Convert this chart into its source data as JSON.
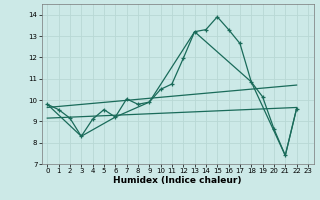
{
  "xlabel": "Humidex (Indice chaleur)",
  "bg_color": "#cce9e7",
  "line_color": "#1a6b5a",
  "grid_color": "#b8d8d5",
  "xlim": [
    -0.5,
    23.5
  ],
  "ylim": [
    7.0,
    14.5
  ],
  "yticks": [
    7,
    8,
    9,
    10,
    11,
    12,
    13,
    14
  ],
  "xticks": [
    0,
    1,
    2,
    3,
    4,
    5,
    6,
    7,
    8,
    9,
    10,
    11,
    12,
    13,
    14,
    15,
    16,
    17,
    18,
    19,
    20,
    21,
    22,
    23
  ],
  "curve1_x": [
    0,
    1,
    2,
    3,
    4,
    5,
    6,
    7,
    8,
    9,
    10,
    11,
    12,
    13,
    14,
    15,
    16,
    17,
    18,
    19,
    20,
    21,
    22
  ],
  "curve1_y": [
    9.8,
    9.55,
    9.15,
    8.3,
    9.1,
    9.55,
    9.2,
    10.05,
    9.8,
    9.9,
    10.5,
    10.75,
    11.95,
    13.2,
    13.3,
    13.9,
    13.3,
    12.65,
    10.85,
    10.15,
    8.65,
    7.4,
    9.6
  ],
  "envelope_x": [
    0,
    3,
    6,
    9,
    13,
    18,
    21,
    22
  ],
  "envelope_y": [
    9.8,
    8.3,
    9.2,
    9.9,
    13.2,
    10.85,
    7.4,
    9.6
  ],
  "line1_x": [
    0,
    22
  ],
  "line1_y": [
    9.65,
    10.7
  ],
  "line2_x": [
    0,
    22
  ],
  "line2_y": [
    9.15,
    9.65
  ]
}
